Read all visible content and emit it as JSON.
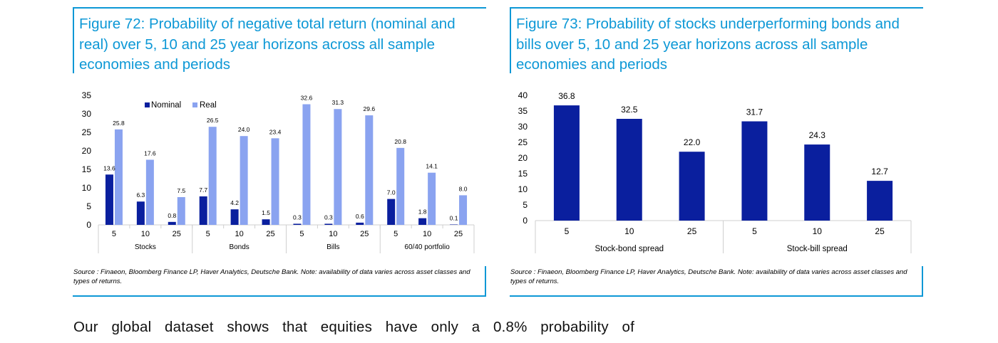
{
  "figure72": {
    "title": "Figure 72: Probability of negative total return (nominal and real) over 5, 10 and 25 year horizons across all sample economies and periods",
    "source": "Source : Finaeon, Bloomberg Finance LP, Haver Analytics, Deutsche Bank. Note: availability of data varies across asset classes and types of returns."
  },
  "figure73": {
    "title": "Figure 73: Probability of stocks underperforming bonds and bills over 5, 10 and 25 year horizons across all sample economies and periods",
    "source": "Source : Finaeon, Bloomberg Finance LP, Haver Analytics, Deutsche Bank. Note: availability of data varies across asset classes and types of returns."
  },
  "body": {
    "text": "Our global dataset shows that equities have only a 0.8% probability of"
  },
  "colors": {
    "nominal": "#0a1f9e",
    "real": "#8aa3f0",
    "spread": "#0a1f9e",
    "accent": "#0d98d6"
  },
  "chart_data": [
    {
      "type": "bar",
      "title": "",
      "ylim": [
        0,
        35
      ],
      "yticks": [
        "0",
        "5",
        "10",
        "15",
        "20",
        "25",
        "30",
        "35"
      ],
      "groups": [
        "Stocks",
        "Bonds",
        "Bills",
        "60/40 portfolio"
      ],
      "categories": [
        "5",
        "10",
        "25"
      ],
      "legend": [
        "Nominal",
        "Real"
      ],
      "legend_position": "top",
      "series": [
        {
          "name": "Nominal",
          "values": [
            [
              13.6,
              6.3,
              0.8
            ],
            [
              7.7,
              4.2,
              1.5
            ],
            [
              0.3,
              0.3,
              0.6
            ],
            [
              7.0,
              1.8,
              0.1
            ]
          ],
          "labels": [
            [
              "13.6",
              "6.3",
              "0.8"
            ],
            [
              "7.7",
              "4.2",
              "1.5"
            ],
            [
              "0.3",
              "0.3",
              "0.6"
            ],
            [
              "7.0",
              "1.8",
              "0.1"
            ]
          ]
        },
        {
          "name": "Real",
          "values": [
            [
              25.8,
              17.6,
              7.5
            ],
            [
              26.5,
              24.0,
              23.4
            ],
            [
              32.6,
              31.3,
              29.6
            ],
            [
              20.8,
              14.1,
              8.0
            ]
          ],
          "labels": [
            [
              "25.8",
              "17.6",
              "7.5"
            ],
            [
              "26.5",
              "24.0",
              "23.4"
            ],
            [
              "32.6",
              "31.3",
              "29.6"
            ],
            [
              "20.8",
              "14.1",
              "8.0"
            ]
          ]
        }
      ]
    },
    {
      "type": "bar",
      "title": "",
      "ylim": [
        0,
        40
      ],
      "yticks": [
        "0",
        "5",
        "10",
        "15",
        "20",
        "25",
        "30",
        "35",
        "40"
      ],
      "groups": [
        "Stock-bond spread",
        "Stock-bill spread"
      ],
      "categories": [
        "5",
        "10",
        "25"
      ],
      "series": [
        {
          "values": [
            [
              36.8,
              32.5,
              22.0
            ],
            [
              31.7,
              24.3,
              12.7
            ]
          ],
          "labels": [
            [
              "36.8",
              "32.5",
              "22.0"
            ],
            [
              "31.7",
              "24.3",
              "12.7"
            ]
          ]
        }
      ]
    }
  ]
}
